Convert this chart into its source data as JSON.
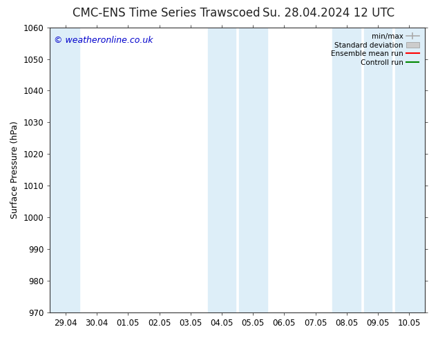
{
  "title_left": "CMC-ENS Time Series Trawscoed",
  "title_right": "Su. 28.04.2024 12 UTC",
  "ylabel": "Surface Pressure (hPa)",
  "ylim": [
    970,
    1060
  ],
  "yticks": [
    970,
    980,
    990,
    1000,
    1010,
    1020,
    1030,
    1040,
    1050,
    1060
  ],
  "xtick_labels": [
    "29.04",
    "30.04",
    "01.05",
    "02.05",
    "03.05",
    "04.05",
    "05.05",
    "06.05",
    "07.05",
    "08.05",
    "09.05",
    "10.05"
  ],
  "xlim": [
    -0.5,
    11.5
  ],
  "shaded_bands": [
    {
      "x_start": -0.5,
      "x_end": 0.45,
      "color": "#ddeef8"
    },
    {
      "x_start": 4.55,
      "x_end": 5.45,
      "color": "#ddeef8"
    },
    {
      "x_start": 5.55,
      "x_end": 6.45,
      "color": "#ddeef8"
    },
    {
      "x_start": 8.55,
      "x_end": 9.45,
      "color": "#ddeef8"
    },
    {
      "x_start": 9.55,
      "x_end": 10.45,
      "color": "#ddeef8"
    },
    {
      "x_start": 10.55,
      "x_end": 11.5,
      "color": "#ddeef8"
    }
  ],
  "watermark": "© weatheronline.co.uk",
  "watermark_color": "#0000cc",
  "background_color": "#ffffff",
  "legend_items": [
    {
      "label": "min/max",
      "color": "#aaaaaa",
      "lw": 1.2
    },
    {
      "label": "Standard deviation",
      "color": "#cccccc",
      "lw": 6
    },
    {
      "label": "Ensemble mean run",
      "color": "#ff0000",
      "lw": 1.5
    },
    {
      "label": "Controll run",
      "color": "#008800",
      "lw": 1.5
    }
  ],
  "title_fontsize": 12,
  "label_fontsize": 9,
  "tick_fontsize": 8.5,
  "watermark_fontsize": 9
}
